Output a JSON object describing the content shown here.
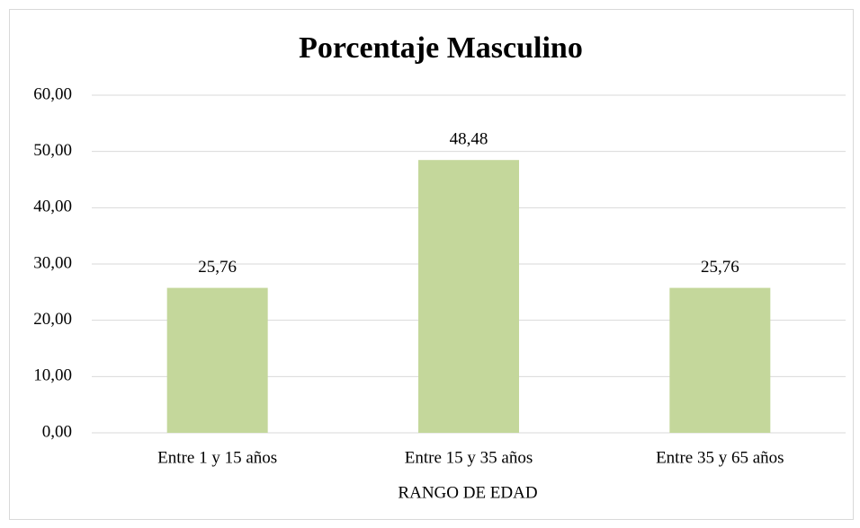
{
  "chart_data": {
    "type": "bar",
    "title": "Porcentaje Masculino",
    "x_label": "RANGO DE EDAD",
    "categories": [
      "Entre 1 y 15 años",
      "Entre 15 y 35 años",
      "Entre 35 y 65 años"
    ],
    "values": [
      25.76,
      48.48,
      25.76
    ],
    "value_labels": [
      "25,76",
      "48,48",
      "25,76"
    ],
    "color": "#c4d79b",
    "ylim": [
      0,
      60
    ],
    "yticks": [
      {
        "value": 0,
        "label": "0,00"
      },
      {
        "value": 10,
        "label": "10,00"
      },
      {
        "value": 20,
        "label": "20,00"
      },
      {
        "value": 30,
        "label": "30,00"
      },
      {
        "value": 40,
        "label": "40,00"
      },
      {
        "value": 50,
        "label": "50,00"
      },
      {
        "value": 60,
        "label": "60,00"
      }
    ],
    "grid": true
  }
}
